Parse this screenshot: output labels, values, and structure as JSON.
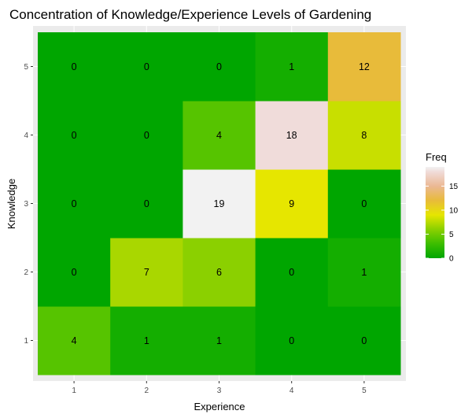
{
  "chart_data": {
    "type": "heatmap",
    "title": "Concentration of Knowledge/Experience Levels of Gardening",
    "xlabel": "Experience",
    "ylabel": "Knowledge",
    "x_categories": [
      "1",
      "2",
      "3",
      "4",
      "5"
    ],
    "y_categories": [
      "1",
      "2",
      "3",
      "4",
      "5"
    ],
    "cells": [
      {
        "x": "1",
        "y": "1",
        "value": 4
      },
      {
        "x": "2",
        "y": "1",
        "value": 1
      },
      {
        "x": "3",
        "y": "1",
        "value": 1
      },
      {
        "x": "4",
        "y": "1",
        "value": 0
      },
      {
        "x": "5",
        "y": "1",
        "value": 0
      },
      {
        "x": "1",
        "y": "2",
        "value": 0
      },
      {
        "x": "2",
        "y": "2",
        "value": 7
      },
      {
        "x": "3",
        "y": "2",
        "value": 6
      },
      {
        "x": "4",
        "y": "2",
        "value": 0
      },
      {
        "x": "5",
        "y": "2",
        "value": 1
      },
      {
        "x": "1",
        "y": "3",
        "value": 0
      },
      {
        "x": "2",
        "y": "3",
        "value": 0
      },
      {
        "x": "3",
        "y": "3",
        "value": 19
      },
      {
        "x": "4",
        "y": "3",
        "value": 9
      },
      {
        "x": "5",
        "y": "3",
        "value": 0
      },
      {
        "x": "1",
        "y": "4",
        "value": 0
      },
      {
        "x": "2",
        "y": "4",
        "value": 0
      },
      {
        "x": "3",
        "y": "4",
        "value": 4
      },
      {
        "x": "4",
        "y": "4",
        "value": 18
      },
      {
        "x": "5",
        "y": "4",
        "value": 8
      },
      {
        "x": "1",
        "y": "5",
        "value": 0
      },
      {
        "x": "2",
        "y": "5",
        "value": 0
      },
      {
        "x": "3",
        "y": "5",
        "value": 0
      },
      {
        "x": "4",
        "y": "5",
        "value": 1
      },
      {
        "x": "5",
        "y": "5",
        "value": 12
      }
    ],
    "legend": {
      "title": "Freq",
      "position": "right",
      "ticks": [
        0,
        5,
        10,
        15
      ],
      "range": [
        0,
        19
      ],
      "color_stops": [
        {
          "value": 0,
          "color": "#00a600"
        },
        {
          "value": 3,
          "color": "#3cbe00"
        },
        {
          "value": 6,
          "color": "#8bd000"
        },
        {
          "value": 9,
          "color": "#e6e600"
        },
        {
          "value": 12,
          "color": "#e8bb3a"
        },
        {
          "value": 15,
          "color": "#ebb894"
        },
        {
          "value": 18,
          "color": "#f0dcda"
        },
        {
          "value": 19,
          "color": "#f2f2f2"
        }
      ]
    },
    "grid": true,
    "panel_background": "#ebebeb",
    "gridline_color": "#ffffff"
  }
}
